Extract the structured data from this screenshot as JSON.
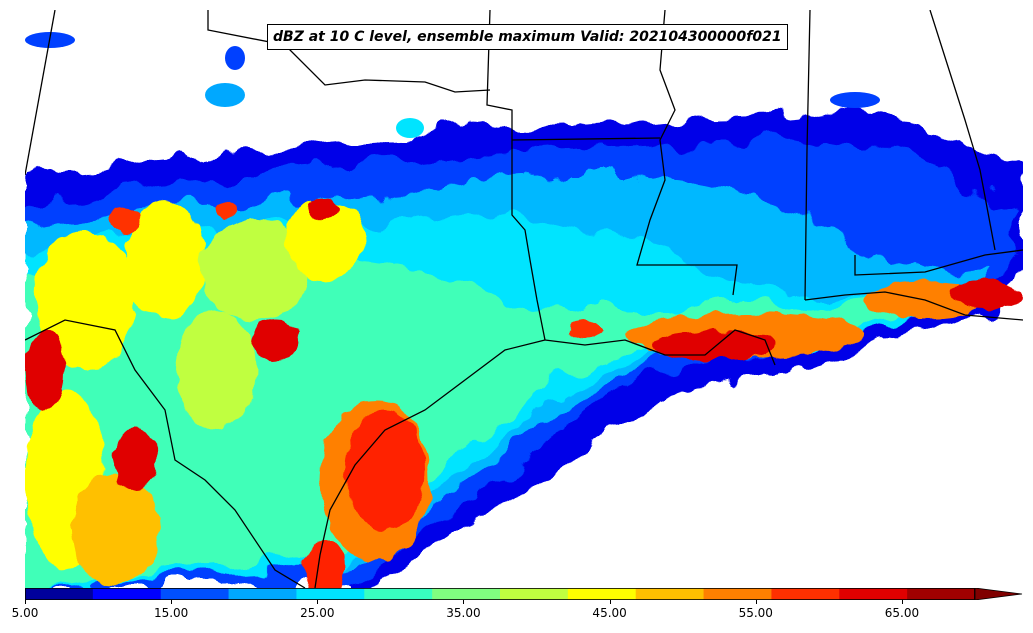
{
  "title": "dBZ at 10 C level, ensemble maximum Valid: 202104300000f021",
  "colorbar": {
    "min": 5,
    "max": 70,
    "step": 5,
    "extend": "max",
    "tick_labels": [
      "5.00",
      "15.00",
      "25.00",
      "35.00",
      "45.00",
      "55.00",
      "65.00"
    ],
    "colors": [
      "#00009c",
      "#0000ff",
      "#0050ff",
      "#00a8ff",
      "#00e4ff",
      "#38ffc0",
      "#80ff80",
      "#c0ff40",
      "#ffff00",
      "#ffc000",
      "#ff8000",
      "#ff3000",
      "#e00000",
      "#a00000"
    ],
    "extend_color": "#800000"
  },
  "map_layers": {
    "state_borders": "on",
    "coastline": "on",
    "background": "#ffffff"
  }
}
